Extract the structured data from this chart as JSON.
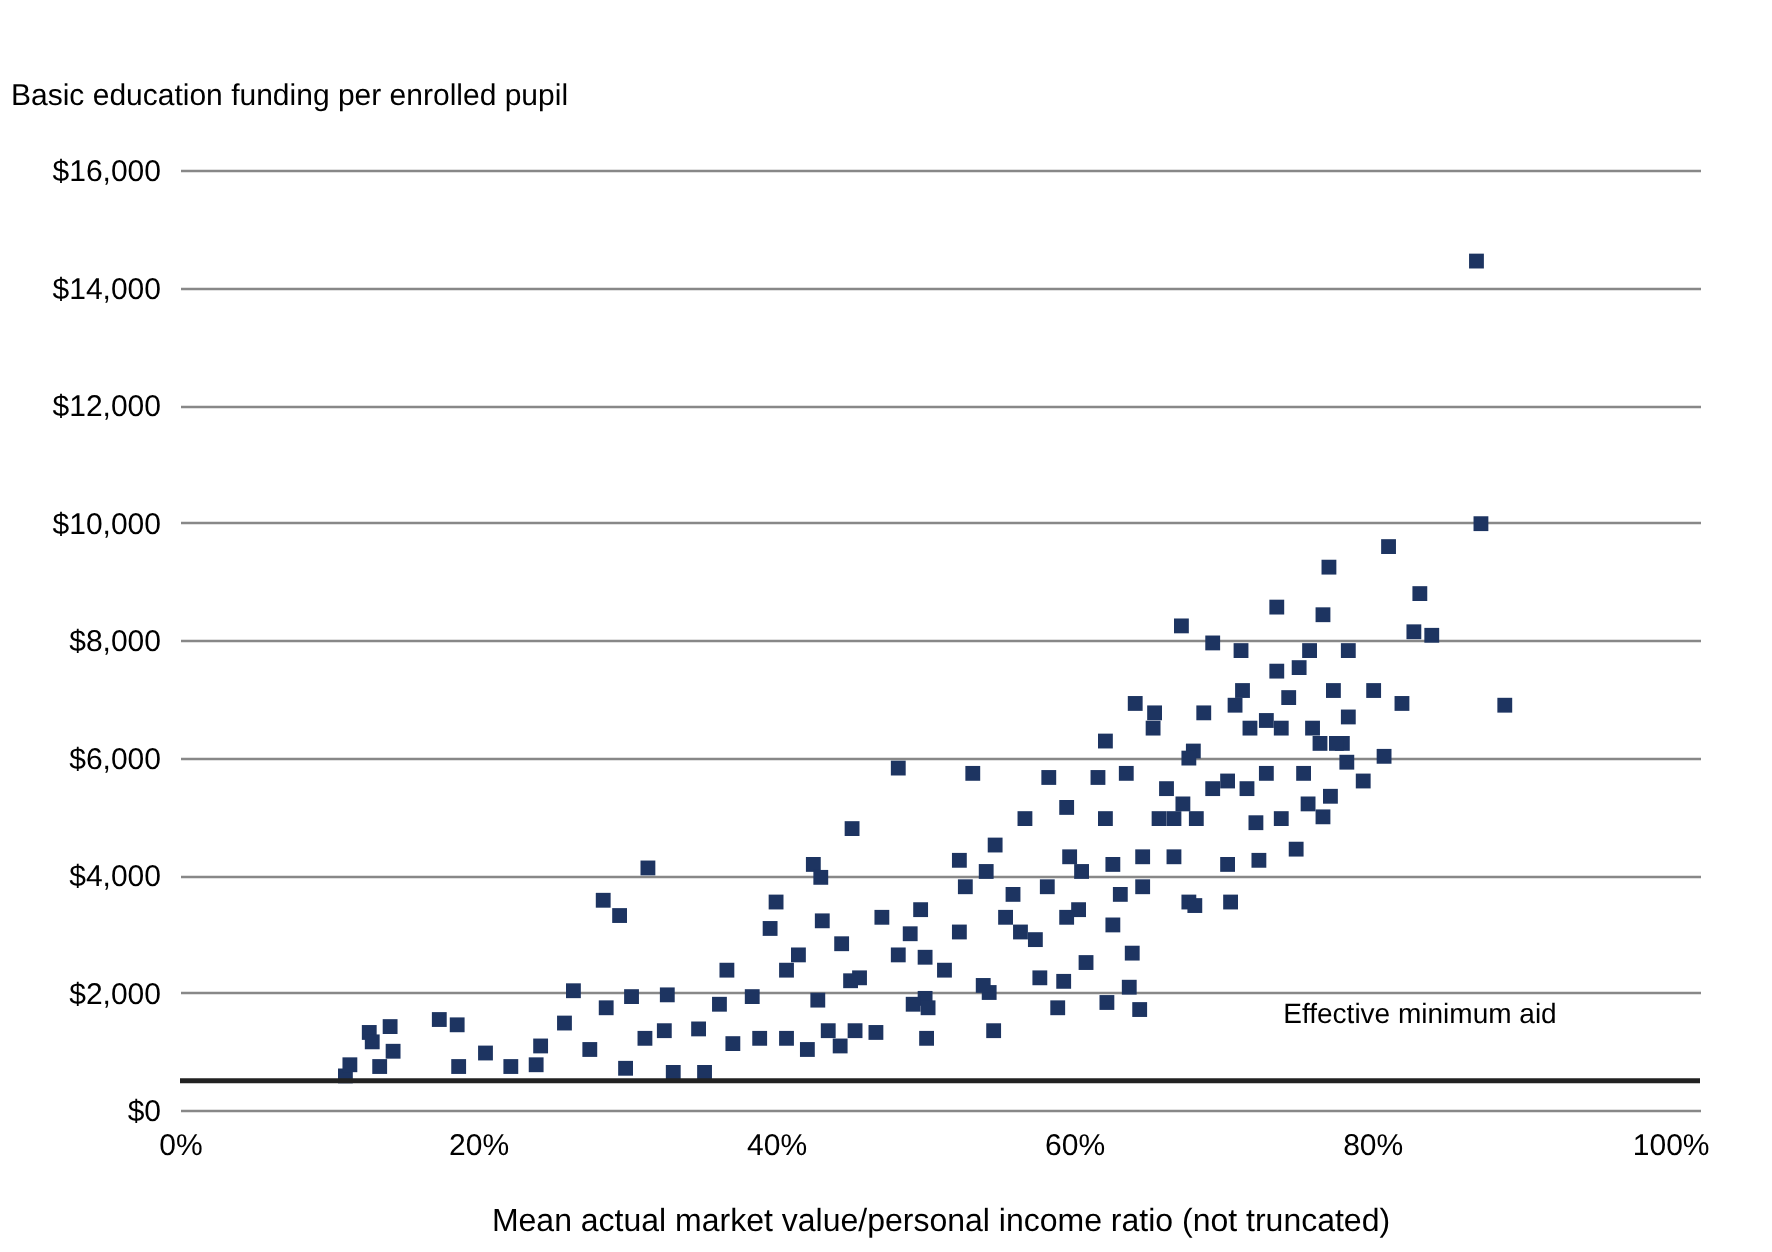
{
  "chart_data": {
    "type": "scatter",
    "ylabel": "Basic education funding per enrolled pupil",
    "xlabel": "Mean actual market value/personal income ratio (not truncated)",
    "marker": "square",
    "grid": "y",
    "xlim": [
      0,
      102
    ],
    "xticks": [
      {
        "value": 0,
        "label": "0%"
      },
      {
        "value": 20,
        "label": "20%"
      },
      {
        "value": 40,
        "label": "40%"
      },
      {
        "value": 60,
        "label": "60%"
      },
      {
        "value": 80,
        "label": "80%"
      },
      {
        "value": 100,
        "label": "100%"
      }
    ],
    "ylim": [
      0,
      16000
    ],
    "yticks": [
      {
        "value": 0,
        "label": "$0"
      },
      {
        "value": 2000,
        "label": "$2,000"
      },
      {
        "value": 4000,
        "label": "$4,000"
      },
      {
        "value": 6000,
        "label": "$6,000"
      },
      {
        "value": 8000,
        "label": "$8,000"
      },
      {
        "value": 10000,
        "label": "$10,000"
      },
      {
        "value": 12000,
        "label": "$12,000"
      },
      {
        "value": 14000,
        "label": "$14,000"
      },
      {
        "value": 16000,
        "label": "$16,000"
      }
    ],
    "ref_lines": [
      {
        "axis": "y",
        "value": 500,
        "label": "Effective minimum aid",
        "color": "#222222"
      }
    ],
    "series": [
      {
        "color": "#1d3461",
        "x": [
          11.1,
          11.4,
          12.7,
          12.9,
          13.4,
          14.1,
          14.3,
          17.4,
          18.6,
          18.7,
          20.5,
          22.2,
          23.9,
          24.2,
          25.8,
          26.4,
          27.5,
          28.4,
          28.6,
          29.5,
          29.9,
          30.3,
          31.4,
          31.2,
          32.7,
          32.5,
          33.1,
          34.8,
          35.2,
          36.2,
          36.7,
          37.1,
          38.4,
          38.9,
          39.6,
          40.0,
          40.7,
          40.7,
          41.5,
          42.1,
          42.5,
          43.0,
          43.1,
          42.8,
          43.5,
          44.3,
          44.4,
          45.1,
          45.3,
          45.6,
          46.7,
          47.1,
          48.2,
          45,
          50,
          50,
          49,
          50.1,
          50.2,
          49.7,
          52.3,
          53.2,
          52.7,
          54.1,
          54.7,
          54.6,
          54.3,
          55.4,
          56.4,
          56.7,
          57.7,
          58.3,
          58.9,
          59.3,
          58.2,
          59.5,
          59.7,
          60.3,
          60.8,
          61.6,
          62.1,
          62.2,
          62.6,
          62.6,
          63.5,
          63.7,
          63.9,
          64.4,
          64.1,
          64.6,
          65.3,
          65.4,
          65.7,
          66.7,
          67.2,
          67.3,
          67.7,
          68.0,
          68.1,
          68.7,
          68.2,
          69.3,
          69.3,
          70.3,
          70.5,
          70.8,
          71.2,
          71.3,
          71.6,
          72.2,
          72.4,
          72.9,
          73.6,
          73.6,
          73.9,
          73.9,
          74.9,
          75.1,
          75.4,
          75.8,
          75.7,
          76.5,
          76.7,
          76.7,
          77.1,
          77.2,
          77.4,
          78.0,
          78.4,
          78.4,
          78.3,
          79.4,
          80.1,
          80.8,
          81.1,
          82.0,
          82.8,
          83.2,
          84.0,
          87.0,
          87.3,
          88.9,
          48.2,
          49.2,
          51.3,
          52.3,
          53.9,
          55.9,
          57.4,
          59.5,
          60.5,
          62.1,
          63.1,
          64.6,
          66.2,
          67.7,
          66.7,
          70.3,
          71.8,
          72.9,
          74.4,
          76.0,
          77.6
        ],
        "values": [
          580,
          770,
          1320,
          1160,
          740,
          1420,
          1000,
          1540,
          1450,
          740,
          970,
          740,
          770,
          1090,
          1480,
          2030,
          1030,
          3570,
          1740,
          3310,
          710,
          1930,
          4120,
          1220,
          1960,
          1350,
          640,
          1380,
          640,
          1800,
          2380,
          1130,
          1930,
          1220,
          3090,
          3540,
          2380,
          1220,
          2640,
          1030,
          4180,
          3960,
          3220,
          1870,
          1350,
          1090,
          2830,
          4790,
          1350,
          2250,
          1320,
          3280,
          5820,
          2200,
          2600,
          1900,
          3000,
          1220,
          1740,
          3410,
          4250,
          5730,
          3800,
          4060,
          4510,
          1350,
          2000,
          3280,
          3030,
          4960,
          2250,
          5660,
          1740,
          2190,
          3800,
          5150,
          4310,
          3410,
          2510,
          5660,
          6280,
          1830,
          3150,
          4180,
          5730,
          2090,
          2670,
          1710,
          6920,
          3800,
          6500,
          6760,
          4960,
          4310,
          8240,
          5210,
          3540,
          6110,
          3480,
          6760,
          4960,
          7950,
          5470,
          4180,
          3540,
          6890,
          7820,
          7140,
          5470,
          4890,
          4250,
          6630,
          8560,
          7470,
          6500,
          4960,
          4440,
          7530,
          5730,
          7820,
          5210,
          6240,
          8430,
          4990,
          9240,
          5340,
          7140,
          6240,
          7820,
          6690,
          5920,
          5600,
          7140,
          6020,
          9590,
          6920,
          8140,
          8790,
          8080,
          14450,
          9980,
          6890,
          2640,
          1800,
          2380,
          3030,
          2120,
          3670,
          2900,
          3280,
          4060,
          4960,
          3670,
          4310,
          5470,
          5990,
          4960,
          5600,
          6500,
          5730,
          7020,
          6500,
          6240
        ]
      }
    ]
  }
}
